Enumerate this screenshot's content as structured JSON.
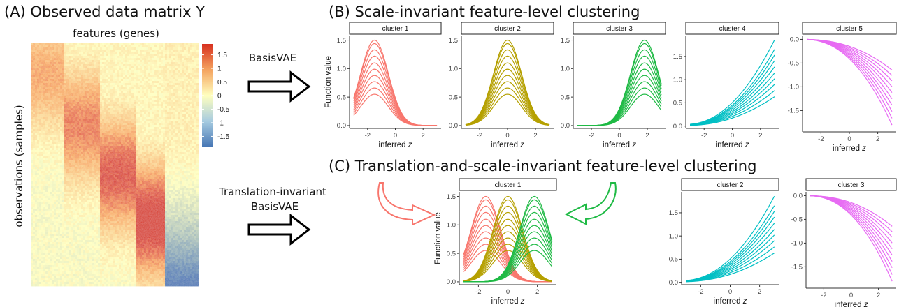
{
  "panel_a": {
    "title": "(A) Observed data matrix Y",
    "x_label": "features (genes)",
    "y_label": "observations (samples)",
    "colorbar_ticks": [
      "1.5",
      "1",
      "0.5",
      "0",
      "-0.5",
      "-1",
      "-1.5"
    ],
    "colorbar_values": [
      1.5,
      1,
      0.5,
      0,
      -0.5,
      -1,
      -1.5
    ],
    "colorbar_range": [
      -1.9,
      1.9
    ],
    "colors": {
      "high": "#d7301f",
      "mid": "#ffffbf",
      "low": "#4575b4"
    }
  },
  "arrows": {
    "top_label": "BasisVAE",
    "bottom_label_line1": "Translation-invariant",
    "bottom_label_line2": "BasisVAE"
  },
  "panel_b": {
    "title": "(B) Scale-invariant feature-level clustering",
    "y_label": "Function value",
    "x_label": "inferred z"
  },
  "panel_c": {
    "title": "(C) Translation-and-scale-invariant feature-level clustering",
    "y_label": "Function value",
    "x_label": "inferred z"
  },
  "colors": {
    "red": "#f8766d",
    "olive": "#b5a000",
    "green": "#1fba45",
    "cyan": "#00bfc4",
    "magenta": "#e76bf3"
  },
  "chart_data": [
    {
      "id": "B1",
      "type": "line",
      "strip": "cluster 1",
      "color": "red",
      "x_ticks": [
        -2,
        0,
        2
      ],
      "y_ticks": [
        "0.0",
        "0.5",
        "1.0",
        "1.5"
      ],
      "y_tick_values": [
        0,
        0.5,
        1,
        1.5
      ],
      "xlim": [
        -3.3,
        3.3
      ],
      "ylim": [
        -0.05,
        1.58
      ],
      "func": "gauss",
      "center": -1.5,
      "width": 1.0,
      "amplitudes": [
        0.55,
        0.66,
        0.77,
        0.88,
        0.99,
        1.1,
        1.22,
        1.33,
        1.44,
        1.5
      ]
    },
    {
      "id": "B2",
      "type": "line",
      "strip": "cluster 2",
      "color": "olive",
      "x_ticks": [
        -2,
        0,
        2
      ],
      "y_ticks": [
        "0.0",
        "0.5",
        "1.0",
        "1.5"
      ],
      "y_tick_values": [
        0,
        0.5,
        1,
        1.5
      ],
      "xlim": [
        -3.3,
        3.3
      ],
      "ylim": [
        -0.05,
        1.58
      ],
      "func": "gauss",
      "center": 0,
      "width": 1.0,
      "amplitudes": [
        0.55,
        0.66,
        0.77,
        0.88,
        0.99,
        1.1,
        1.22,
        1.33,
        1.44,
        1.5
      ]
    },
    {
      "id": "B3",
      "type": "line",
      "strip": "cluster 3",
      "color": "green",
      "x_ticks": [
        -2,
        0,
        2
      ],
      "y_ticks": [
        "0.0",
        "0.5",
        "1.0",
        "1.5"
      ],
      "y_tick_values": [
        0,
        0.5,
        1,
        1.5
      ],
      "xlim": [
        -3.3,
        3.3
      ],
      "ylim": [
        -0.05,
        1.58
      ],
      "func": "gauss",
      "center": 1.8,
      "width": 1.0,
      "amplitudes": [
        0.55,
        0.66,
        0.77,
        0.88,
        0.99,
        1.1,
        1.22,
        1.33,
        1.44,
        1.5
      ]
    },
    {
      "id": "B4",
      "type": "line",
      "strip": "cluster 4",
      "color": "cyan",
      "x_ticks": [
        -2,
        0,
        2
      ],
      "y_ticks": [
        "0.0",
        "0.5",
        "1.0",
        "1.5"
      ],
      "y_tick_values": [
        0,
        0.5,
        1,
        1.5
      ],
      "xlim": [
        -3.3,
        3.3
      ],
      "ylim": [
        -0.05,
        1.95
      ],
      "func": "quad_up",
      "amplitudes": [
        0.62,
        0.75,
        0.88,
        1.0,
        1.12,
        1.25,
        1.38,
        1.5,
        1.62,
        1.82
      ]
    },
    {
      "id": "B5",
      "type": "line",
      "strip": "cluster 5",
      "color": "magenta",
      "x_ticks": [
        -2,
        0,
        2
      ],
      "y_ticks": [
        "0.0",
        "-0.5",
        "-1.0",
        "-1.5"
      ],
      "y_tick_values": [
        0,
        -0.5,
        -1,
        -1.5
      ],
      "xlim": [
        -3.3,
        3.3
      ],
      "ylim": [
        -1.95,
        0.08
      ],
      "func": "quad_down",
      "amplitudes": [
        0.68,
        0.8,
        0.92,
        1.05,
        1.18,
        1.32,
        1.46,
        1.6,
        1.75,
        1.9
      ]
    },
    {
      "id": "C1",
      "type": "line",
      "strip": "cluster 1",
      "color": "multi",
      "x_ticks": [
        -2,
        0,
        2
      ],
      "y_ticks": [
        "0.0",
        "0.5",
        "1.0",
        "1.5"
      ],
      "y_tick_values": [
        0,
        0.5,
        1,
        1.5
      ],
      "xlim": [
        -3.3,
        3.3
      ],
      "ylim": [
        -0.05,
        1.58
      ],
      "func": "gauss_multi",
      "width": 1.0,
      "groups": [
        {
          "color": "red",
          "center": -1.5
        },
        {
          "color": "olive",
          "center": 0
        },
        {
          "color": "green",
          "center": 1.8
        }
      ],
      "amplitudes": [
        0.55,
        0.66,
        0.77,
        0.88,
        0.99,
        1.1,
        1.22,
        1.33,
        1.44,
        1.5
      ]
    },
    {
      "id": "C2",
      "type": "line",
      "strip": "cluster 2",
      "color": "cyan",
      "x_ticks": [
        -2,
        0,
        2
      ],
      "y_ticks": [
        "0.0",
        "0.5",
        "1.0",
        "1.5"
      ],
      "y_tick_values": [
        0,
        0.5,
        1,
        1.5
      ],
      "xlim": [
        -3.3,
        3.3
      ],
      "ylim": [
        -0.05,
        1.95
      ],
      "func": "quad_up",
      "amplitudes": [
        0.62,
        0.75,
        0.88,
        1.0,
        1.12,
        1.25,
        1.38,
        1.5,
        1.62,
        1.82
      ]
    },
    {
      "id": "C3",
      "type": "line",
      "strip": "cluster 3",
      "color": "magenta",
      "x_ticks": [
        -2,
        0,
        2
      ],
      "y_ticks": [
        "0.0",
        "-0.5",
        "-1.0",
        "-1.5"
      ],
      "y_tick_values": [
        0,
        -0.5,
        -1,
        -1.5
      ],
      "xlim": [
        -3.3,
        3.3
      ],
      "ylim": [
        -1.95,
        0.08
      ],
      "func": "quad_down",
      "amplitudes": [
        0.68,
        0.8,
        0.92,
        1.05,
        1.18,
        1.32,
        1.46,
        1.6,
        1.75,
        1.9
      ]
    }
  ]
}
